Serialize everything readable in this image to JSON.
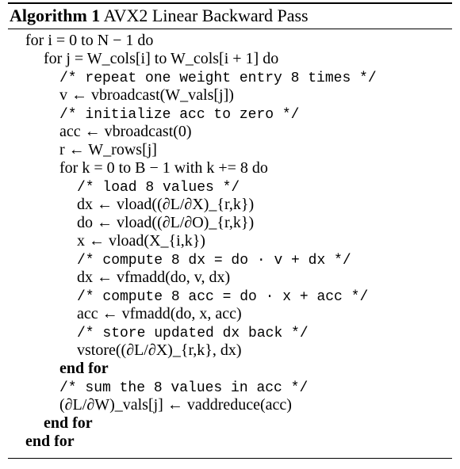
{
  "caption": {
    "label": "Algorithm 1",
    "title": "AVX2 Linear Backward Pass"
  },
  "lines": [
    "for i = 0 to N − 1 do",
    "for j = W_cols[i] to W_cols[i + 1] do",
    "/* repeat one weight entry 8 times */",
    "v ← vbroadcast(W_vals[j])",
    "/* initialize acc to zero */",
    "acc ← vbroadcast(0)",
    "r ← W_rows[j]",
    "for k = 0 to B − 1 with k += 8 do",
    "/* load 8 values */",
    "dx ← vload((∂L/∂X)_{r,k})",
    "do ← vload((∂L/∂O)_{r,k})",
    "x ← vload(X_{i,k})",
    "/* compute 8 dx = do · v + dx */",
    "dx ← vfmadd(do, v, dx)",
    "/* compute 8 acc = do · x + acc */",
    "acc ← vfmadd(do, x, acc)",
    "/* store updated dx back */",
    "vstore((∂L/∂X)_{r,k}, dx)",
    "end for",
    "/* sum the 8 values in acc */",
    "(∂L/∂W)_vals[j] ← vaddreduce(acc)",
    "end for",
    "end for"
  ]
}
